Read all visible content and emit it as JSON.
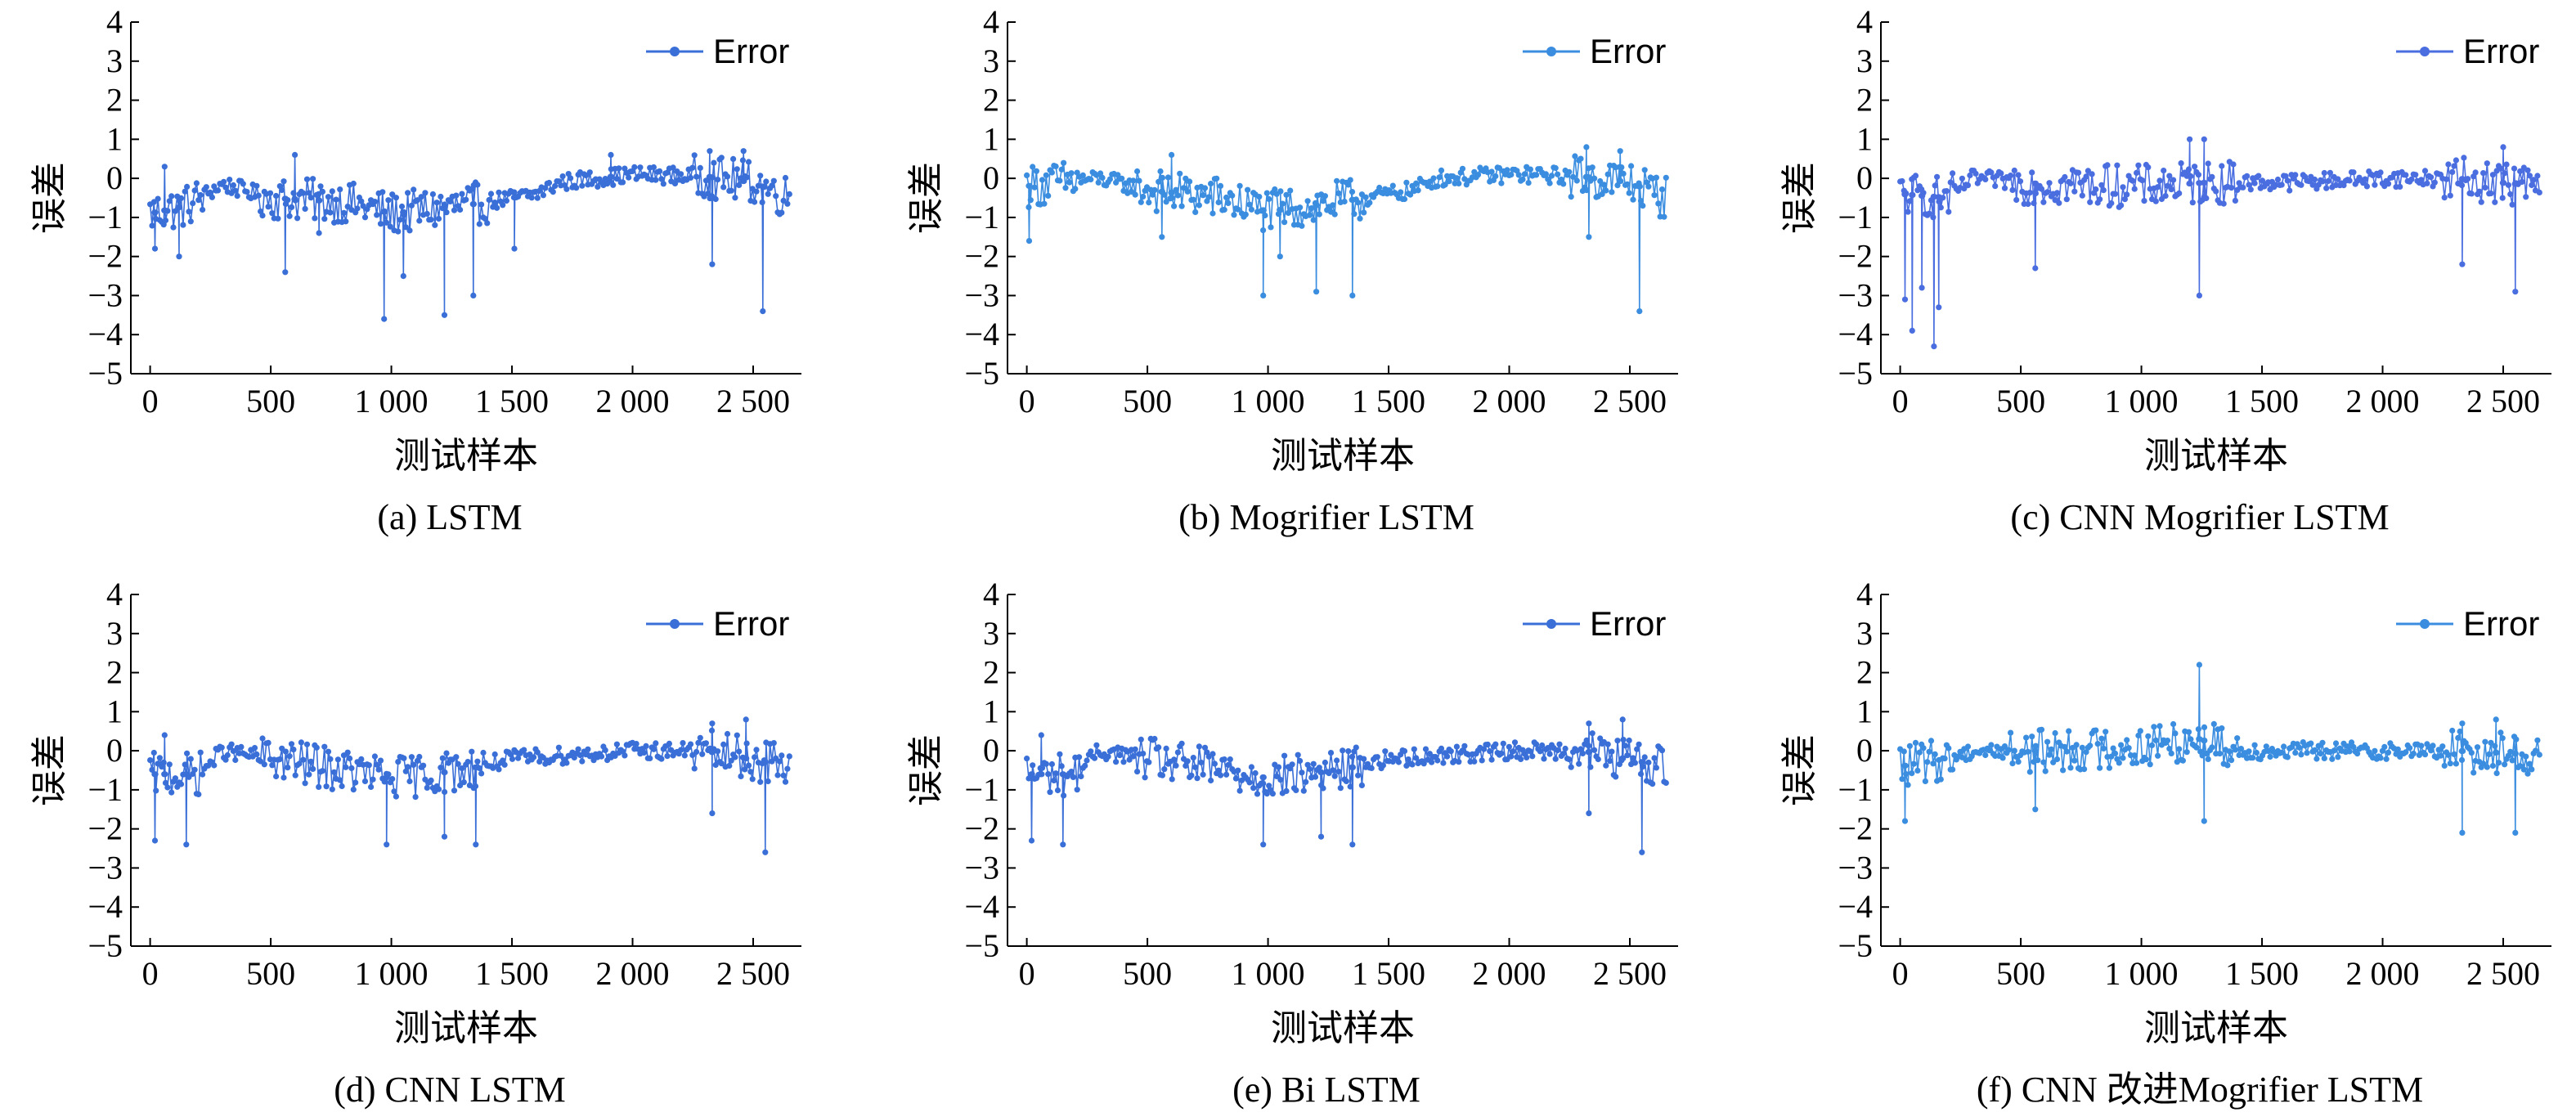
{
  "figure": {
    "panels": [
      {
        "caption": "(a) LSTM"
      },
      {
        "caption": "(b) Mogrifier LSTM"
      },
      {
        "caption": "(c) CNN Mogrifier LSTM"
      },
      {
        "caption": "(d) CNN LSTM"
      },
      {
        "caption": "(e) Bi LSTM"
      },
      {
        "caption": "(f) CNN 改进Mogrifier LSTM"
      }
    ]
  },
  "chart_data": [
    {
      "type": "line",
      "title": "(a) LSTM",
      "xlabel": "测试样本",
      "ylabel": "误差",
      "xlim": [
        -80,
        2700
      ],
      "ylim": [
        -5,
        4
      ],
      "xticks": [
        0,
        500,
        1000,
        1500,
        2000,
        2500
      ],
      "xtick_labels": [
        "0",
        "500",
        "1 000",
        "1 500",
        "2 000",
        "2 500"
      ],
      "yticks": [
        -5,
        -4,
        -3,
        -2,
        -1,
        0,
        1,
        2,
        3,
        4
      ],
      "ytick_labels": [
        "−5",
        "−4",
        "−3",
        "−2",
        "−1",
        "0",
        "1",
        "2",
        "3",
        "4"
      ],
      "legend_position": "top-right",
      "grid": false,
      "color": "#3a6fd8",
      "series": [
        {
          "name": "Error",
          "x_range": [
            0,
            2650
          ],
          "trend": [
            [
              0,
              -0.9
            ],
            [
              150,
              -0.7
            ],
            [
              300,
              -0.15
            ],
            [
              500,
              -0.5
            ],
            [
              800,
              -0.6
            ],
            [
              1000,
              -0.9
            ],
            [
              1300,
              -0.7
            ],
            [
              1600,
              -0.4
            ],
            [
              1700,
              -0.1
            ],
            [
              2000,
              0.1
            ],
            [
              2300,
              0.05
            ],
            [
              2500,
              -0.1
            ],
            [
              2650,
              -0.5
            ]
          ],
          "spikes": [
            [
              20,
              -1.8
            ],
            [
              60,
              0.3
            ],
            [
              120,
              -2.0
            ],
            [
              560,
              -2.4
            ],
            [
              700,
              -1.4
            ],
            [
              970,
              -3.6
            ],
            [
              1050,
              -2.5
            ],
            [
              1220,
              -3.5
            ],
            [
              1340,
              -3.0
            ],
            [
              1510,
              -1.8
            ],
            [
              2330,
              -2.2
            ],
            [
              2540,
              -3.4
            ],
            [
              2320,
              0.7
            ],
            [
              2460,
              0.7
            ],
            [
              1910,
              0.6
            ],
            [
              600,
              0.6
            ]
          ]
        }
      ]
    },
    {
      "type": "line",
      "title": "(b) Mogrifier LSTM",
      "xlabel": "测试样本",
      "ylabel": "误差",
      "xlim": [
        -80,
        2700
      ],
      "ylim": [
        -5,
        4
      ],
      "xticks": [
        0,
        500,
        1000,
        1500,
        2000,
        2500
      ],
      "xtick_labels": [
        "0",
        "500",
        "1 000",
        "1 500",
        "2 000",
        "2 500"
      ],
      "yticks": [
        -5,
        -4,
        -3,
        -2,
        -1,
        0,
        1,
        2,
        3,
        4
      ],
      "ytick_labels": [
        "−5",
        "−4",
        "−3",
        "−2",
        "−1",
        "0",
        "1",
        "2",
        "3",
        "4"
      ],
      "legend_position": "top-right",
      "grid": false,
      "color": "#3b8de0",
      "series": [
        {
          "name": "Error",
          "x_range": [
            0,
            2650
          ],
          "trend": [
            [
              0,
              -0.2
            ],
            [
              300,
              0.0
            ],
            [
              500,
              -0.3
            ],
            [
              800,
              -0.5
            ],
            [
              1000,
              -0.85
            ],
            [
              1300,
              -0.6
            ],
            [
              1600,
              -0.3
            ],
            [
              1700,
              0.0
            ],
            [
              2000,
              0.1
            ],
            [
              2300,
              0.05
            ],
            [
              2500,
              -0.1
            ],
            [
              2650,
              -0.5
            ]
          ],
          "spikes": [
            [
              10,
              -1.6
            ],
            [
              560,
              -1.5
            ],
            [
              980,
              -3.0
            ],
            [
              1200,
              -2.9
            ],
            [
              1350,
              -3.0
            ],
            [
              1050,
              -2.0
            ],
            [
              2330,
              -1.5
            ],
            [
              2540,
              -3.4
            ],
            [
              2320,
              0.8
            ],
            [
              2460,
              0.7
            ],
            [
              600,
              0.6
            ]
          ]
        }
      ]
    },
    {
      "type": "line",
      "title": "(c) CNN Mogrifier LSTM",
      "xlabel": "测试样本",
      "ylabel": "误差",
      "xlim": [
        -80,
        2700
      ],
      "ylim": [
        -5,
        4
      ],
      "xticks": [
        0,
        500,
        1000,
        1500,
        2000,
        2500
      ],
      "xtick_labels": [
        "0",
        "500",
        "1 000",
        "1 500",
        "2 000",
        "2 500"
      ],
      "yticks": [
        -5,
        -4,
        -3,
        -2,
        -1,
        0,
        1,
        2,
        3,
        4
      ],
      "ytick_labels": [
        "−5",
        "−4",
        "−3",
        "−2",
        "−1",
        "0",
        "1",
        "2",
        "3",
        "4"
      ],
      "legend_position": "top-right",
      "grid": false,
      "color": "#4a6ee0",
      "series": [
        {
          "name": "Error",
          "x_range": [
            0,
            2650
          ],
          "trend": [
            [
              0,
              -0.4
            ],
            [
              200,
              -0.5
            ],
            [
              300,
              0.0
            ],
            [
              600,
              -0.15
            ],
            [
              1000,
              -0.2
            ],
            [
              1300,
              -0.1
            ],
            [
              1600,
              -0.1
            ],
            [
              2000,
              0.0
            ],
            [
              2300,
              0.0
            ],
            [
              2650,
              -0.2
            ]
          ],
          "spikes": [
            [
              20,
              -3.1
            ],
            [
              50,
              -3.9
            ],
            [
              90,
              -2.8
            ],
            [
              140,
              -4.3
            ],
            [
              160,
              -3.3
            ],
            [
              560,
              -2.3
            ],
            [
              1240,
              -3.0
            ],
            [
              1200,
              1.0
            ],
            [
              1260,
              1.0
            ],
            [
              2330,
              -2.2
            ],
            [
              2550,
              -2.9
            ],
            [
              2500,
              0.8
            ]
          ]
        }
      ]
    },
    {
      "type": "line",
      "title": "(d) CNN LSTM",
      "xlabel": "测试样本",
      "ylabel": "误差",
      "xlim": [
        -80,
        2700
      ],
      "ylim": [
        -5,
        4
      ],
      "xticks": [
        0,
        500,
        1000,
        1500,
        2000,
        2500
      ],
      "xtick_labels": [
        "0",
        "500",
        "1 000",
        "1 500",
        "2 000",
        "2 500"
      ],
      "yticks": [
        -5,
        -4,
        -3,
        -2,
        -1,
        0,
        1,
        2,
        3,
        4
      ],
      "ytick_labels": [
        "−5",
        "−4",
        "−3",
        "−2",
        "−1",
        "0",
        "1",
        "2",
        "3",
        "4"
      ],
      "legend_position": "top-right",
      "grid": false,
      "color": "#3a6fd8",
      "series": [
        {
          "name": "Error",
          "x_range": [
            0,
            2650
          ],
          "trend": [
            [
              0,
              -0.6
            ],
            [
              200,
              -0.6
            ],
            [
              300,
              0.0
            ],
            [
              600,
              -0.3
            ],
            [
              1000,
              -0.7
            ],
            [
              1300,
              -0.5
            ],
            [
              1500,
              -0.2
            ],
            [
              2000,
              0.0
            ],
            [
              2300,
              0.0
            ],
            [
              2650,
              -0.4
            ]
          ],
          "spikes": [
            [
              20,
              -2.3
            ],
            [
              60,
              0.4
            ],
            [
              150,
              -2.4
            ],
            [
              980,
              -2.4
            ],
            [
              1220,
              -2.2
            ],
            [
              1350,
              -2.4
            ],
            [
              2330,
              -1.6
            ],
            [
              2550,
              -2.6
            ],
            [
              2330,
              0.7
            ],
            [
              2470,
              0.8
            ]
          ]
        }
      ]
    },
    {
      "type": "line",
      "title": "(e) Bi LSTM",
      "xlabel": "测试样本",
      "ylabel": "误差",
      "xlim": [
        -80,
        2700
      ],
      "ylim": [
        -5,
        4
      ],
      "xticks": [
        0,
        500,
        1000,
        1500,
        2000,
        2500
      ],
      "xtick_labels": [
        "0",
        "500",
        "1 000",
        "1 500",
        "2 000",
        "2 500"
      ],
      "yticks": [
        -5,
        -4,
        -3,
        -2,
        -1,
        0,
        1,
        2,
        3,
        4
      ],
      "ytick_labels": [
        "−5",
        "−4",
        "−3",
        "−2",
        "−1",
        "0",
        "1",
        "2",
        "3",
        "4"
      ],
      "legend_position": "top-right",
      "grid": false,
      "color": "#3a6fd8",
      "series": [
        {
          "name": "Error",
          "x_range": [
            0,
            2650
          ],
          "trend": [
            [
              0,
              -0.6
            ],
            [
              200,
              -0.6
            ],
            [
              300,
              0.0
            ],
            [
              600,
              -0.3
            ],
            [
              1000,
              -0.7
            ],
            [
              1300,
              -0.5
            ],
            [
              1500,
              -0.2
            ],
            [
              2000,
              0.0
            ],
            [
              2300,
              0.0
            ],
            [
              2650,
              -0.4
            ]
          ],
          "spikes": [
            [
              20,
              -2.3
            ],
            [
              60,
              0.4
            ],
            [
              150,
              -2.4
            ],
            [
              980,
              -2.4
            ],
            [
              1220,
              -2.2
            ],
            [
              1350,
              -2.4
            ],
            [
              2330,
              -1.6
            ],
            [
              2550,
              -2.6
            ],
            [
              2330,
              0.7
            ],
            [
              2470,
              0.8
            ]
          ]
        }
      ]
    },
    {
      "type": "line",
      "title": "(f) CNN 改进Mogrifier LSTM",
      "xlabel": "测试样本",
      "ylabel": "误差",
      "xlim": [
        -80,
        2700
      ],
      "ylim": [
        -5,
        4
      ],
      "xticks": [
        0,
        500,
        1000,
        1500,
        2000,
        2500
      ],
      "xtick_labels": [
        "0",
        "500",
        "1 000",
        "1 500",
        "2 000",
        "2 500"
      ],
      "yticks": [
        -5,
        -4,
        -3,
        -2,
        -1,
        0,
        1,
        2,
        3,
        4
      ],
      "ytick_labels": [
        "−5",
        "−4",
        "−3",
        "−2",
        "−1",
        "0",
        "1",
        "2",
        "3",
        "4"
      ],
      "legend_position": "top-right",
      "grid": false,
      "color": "#3b8de0",
      "series": [
        {
          "name": "Error",
          "x_range": [
            0,
            2650
          ],
          "trend": [
            [
              0,
              -0.4
            ],
            [
              200,
              -0.2
            ],
            [
              300,
              0.0
            ],
            [
              600,
              0.0
            ],
            [
              1000,
              0.1
            ],
            [
              1240,
              0.3
            ],
            [
              1400,
              0.0
            ],
            [
              2000,
              0.0
            ],
            [
              2300,
              0.0
            ],
            [
              2650,
              -0.1
            ]
          ],
          "spikes": [
            [
              20,
              -1.8
            ],
            [
              1240,
              2.2
            ],
            [
              1260,
              -1.8
            ],
            [
              2330,
              -2.1
            ],
            [
              2550,
              -2.1
            ],
            [
              560,
              -1.5
            ],
            [
              2330,
              0.7
            ],
            [
              2470,
              0.8
            ]
          ]
        }
      ]
    }
  ]
}
